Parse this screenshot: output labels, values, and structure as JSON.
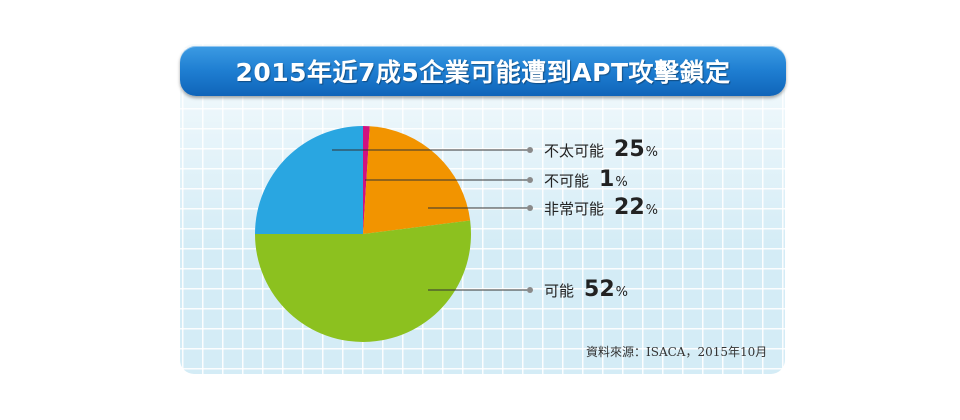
{
  "chart_data": {
    "type": "pie",
    "title": "2015年近7成5企業可能遭到APT攻擊鎖定",
    "slices": [
      {
        "label": "不太可能",
        "value": 25,
        "color": "#29a6e1"
      },
      {
        "label": "不可能",
        "value": 1,
        "color": "#d1127f"
      },
      {
        "label": "非常可能",
        "value": 22,
        "color": "#f29400"
      },
      {
        "label": "可能",
        "value": 52,
        "color": "#8cc11f"
      }
    ],
    "unit": "%",
    "source": "資料來源：ISACA，2015年10月"
  }
}
